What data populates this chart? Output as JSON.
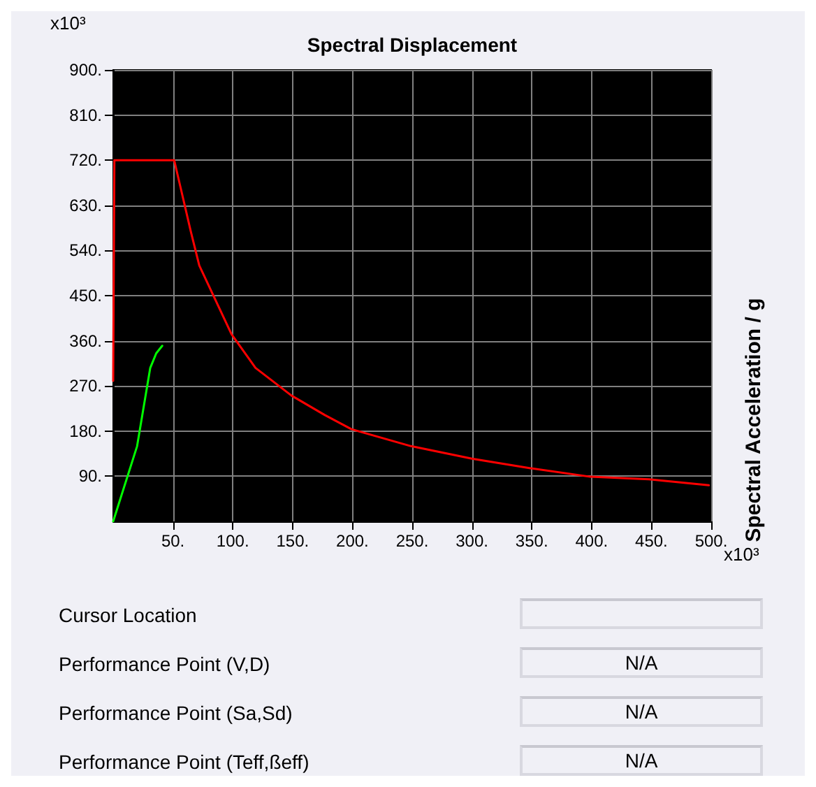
{
  "chart_data": {
    "type": "line",
    "title": "Spectral Displacement",
    "ylabel": "Spectral Acceleration / g",
    "annotations": [
      "x10³",
      "x10³",
      "Cursor Location",
      "Performance Point (V,D)",
      "N/A",
      "Performance Point (Sa,Sd)",
      "N/A",
      "Performance Point (Teff,ßeff)",
      "N/A"
    ],
    "series": [
      {
        "color": "#ff0000",
        "x": [
          0,
          1,
          51,
          65,
          72,
          99,
          119,
          149,
          177,
          199,
          249,
          300,
          349,
          399,
          448,
          498
        ],
        "values": [
          280,
          720,
          720,
          577,
          510,
          373,
          306,
          251,
          212,
          184,
          150,
          125,
          106,
          89,
          84,
          72
        ]
      },
      {
        "color": "#00ff00",
        "x": [
          0,
          20,
          31,
          36,
          41
        ],
        "values": [
          0,
          150,
          306,
          335,
          350
        ]
      }
    ],
    "xlim": [
      0,
      500
    ],
    "xticks": [
      {
        "value": 50,
        "label": "50."
      },
      {
        "value": 100,
        "label": "100."
      },
      {
        "value": 150,
        "label": "150."
      },
      {
        "value": 200,
        "label": "200."
      },
      {
        "value": 250,
        "label": "250."
      },
      {
        "value": 300,
        "label": "300."
      },
      {
        "value": 350,
        "label": "350."
      },
      {
        "value": 400,
        "label": "400."
      },
      {
        "value": 450,
        "label": "450."
      },
      {
        "value": 500,
        "label": "500."
      }
    ],
    "ylim": [
      0,
      900
    ],
    "yticks": [
      {
        "value": 90,
        "label": "90."
      },
      {
        "value": 180,
        "label": "180."
      },
      {
        "value": 270,
        "label": "270."
      },
      {
        "value": 360,
        "label": "360."
      },
      {
        "value": 450,
        "label": "450."
      },
      {
        "value": 540,
        "label": "540."
      },
      {
        "value": 630,
        "label": "630."
      },
      {
        "value": 720,
        "label": "720."
      },
      {
        "value": 810,
        "label": "810."
      },
      {
        "value": 900,
        "label": "900."
      }
    ],
    "grid": true,
    "marker": "none",
    "line_style": "solid"
  }
}
